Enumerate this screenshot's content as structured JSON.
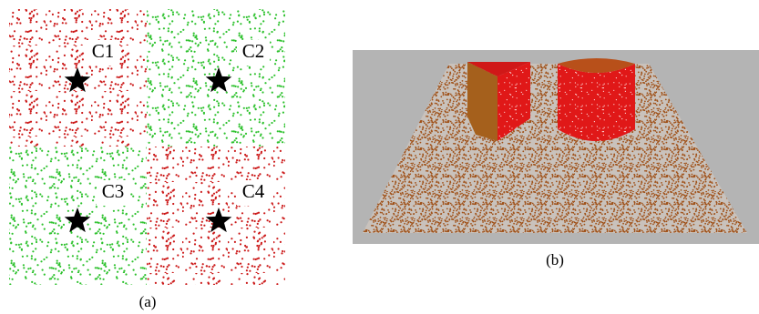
{
  "panel_a": {
    "clusters": [
      "C1",
      "C2",
      "C3",
      "C4"
    ],
    "caption": "(a)"
  },
  "panel_b": {
    "caption": "(b)"
  }
}
